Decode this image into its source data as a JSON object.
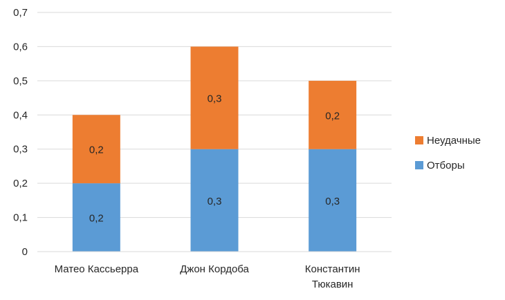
{
  "chart_data": {
    "type": "bar",
    "stacked": true,
    "categories": [
      [
        "Матео Кассьерра"
      ],
      [
        "Джон Кордоба"
      ],
      [
        "Константин",
        "Тюкавин"
      ]
    ],
    "series": [
      {
        "name": "Отборы",
        "color": "#5B9BD5",
        "values": [
          0.2,
          0.3,
          0.3
        ],
        "labels": [
          "0,2",
          "0,3",
          "0,3"
        ]
      },
      {
        "name": "Неудачные",
        "color": "#ED7D31",
        "values": [
          0.2,
          0.3,
          0.2
        ],
        "labels": [
          "0,2",
          "0,3",
          "0,2"
        ]
      }
    ],
    "ylim": [
      0,
      0.7
    ],
    "yticks": [
      0,
      0.1,
      0.2,
      0.3,
      0.4,
      0.5,
      0.6,
      0.7
    ],
    "ytick_labels": [
      "0",
      "0,1",
      "0,2",
      "0,3",
      "0,4",
      "0,5",
      "0,6",
      "0,7"
    ],
    "grid": true,
    "grid_color": "#D9D9D9",
    "legend_position": "right",
    "legend_order": [
      "Неудачные",
      "Отборы"
    ],
    "title": "",
    "xlabel": "",
    "ylabel": ""
  }
}
